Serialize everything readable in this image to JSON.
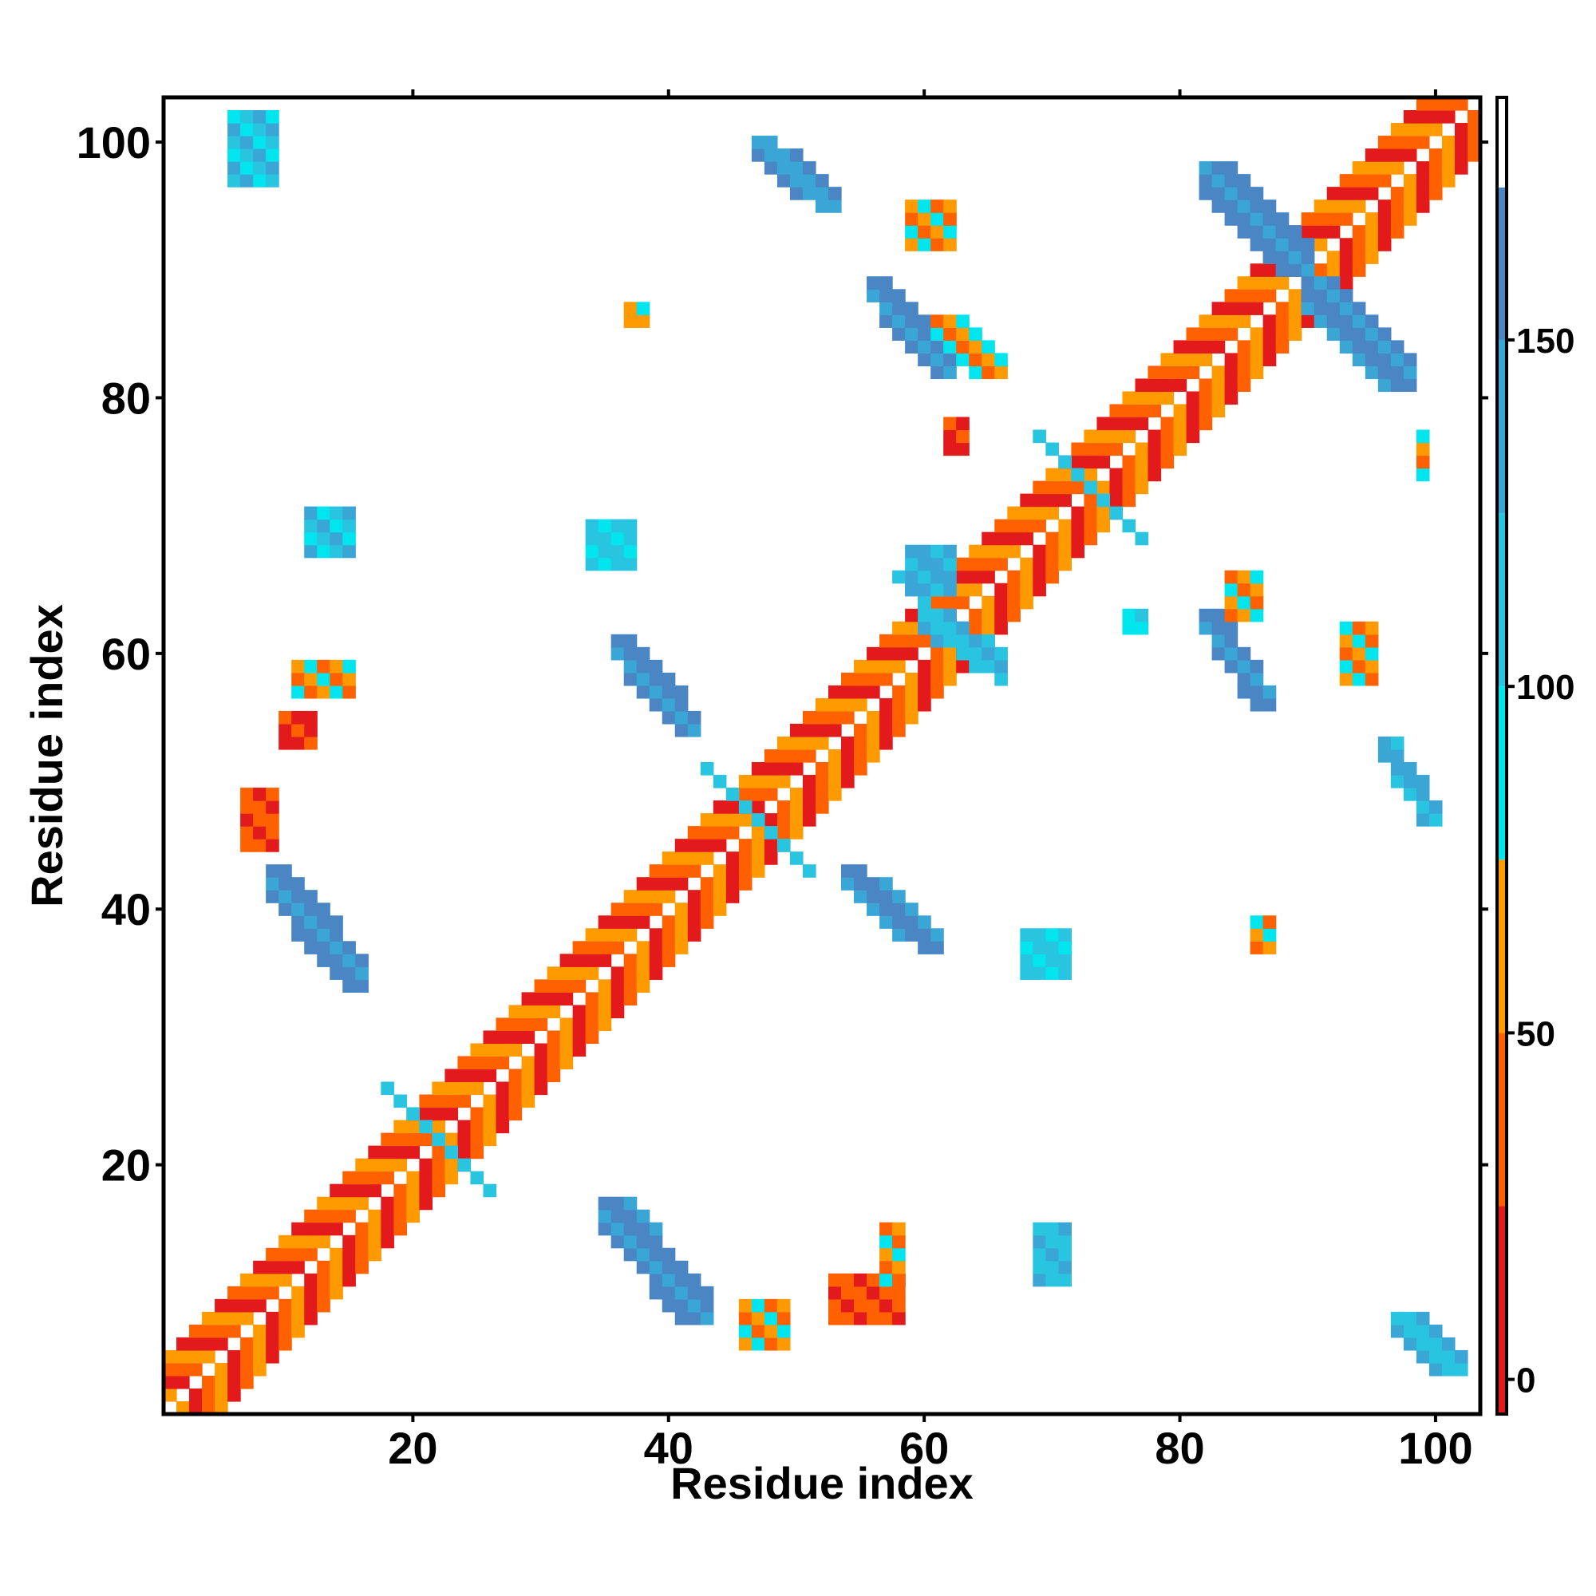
{
  "chart_data": {
    "type": "heatmap",
    "title": "",
    "xlabel": "Residue index",
    "ylabel": "Residue index",
    "xlim": [
      1,
      103
    ],
    "ylim": [
      1,
      103
    ],
    "x_ticks": [
      {
        "value": 20,
        "label": "20"
      },
      {
        "value": 40,
        "label": "40"
      },
      {
        "value": 60,
        "label": "60"
      },
      {
        "value": 80,
        "label": "80"
      },
      {
        "value": 100,
        "label": "100"
      }
    ],
    "y_ticks": [
      {
        "value": 20,
        "label": "20"
      },
      {
        "value": 40,
        "label": "40"
      },
      {
        "value": 60,
        "label": "60"
      },
      {
        "value": 80,
        "label": "80"
      },
      {
        "value": 100,
        "label": "100"
      }
    ],
    "colorbar": {
      "range": [
        -5,
        185
      ],
      "ticks": [
        {
          "value": 0,
          "label": "0"
        },
        {
          "value": 50,
          "label": "50"
        },
        {
          "value": 100,
          "label": "100"
        },
        {
          "value": 150,
          "label": "150"
        }
      ],
      "bands": [
        {
          "from": -5,
          "to": 25,
          "color": "#e31a1c"
        },
        {
          "from": 25,
          "to": 50,
          "color": "#ff6000"
        },
        {
          "from": 50,
          "to": 75,
          "color": "#ff9a00"
        },
        {
          "from": 75,
          "to": 100,
          "color": "#00e5ee"
        },
        {
          "from": 100,
          "to": 125,
          "color": "#29c4e0"
        },
        {
          "from": 125,
          "to": 150,
          "color": "#3aa6d6"
        },
        {
          "from": 150,
          "to": 172,
          "color": "#4a86c4"
        },
        {
          "from": 172,
          "to": 185,
          "color": "#ffffff"
        }
      ]
    },
    "pixel_map_description": "Contact/angle map; each cell colored by band value",
    "diagonal": {
      "start": 1,
      "end": 103
    },
    "off_diagonal_blocks": [
      {
        "x": [
          6,
          9
        ],
        "y": [
          97,
          102
        ],
        "value": 110
      },
      {
        "x": [
          47,
          53
        ],
        "y": [
          95,
          100
        ],
        "value": 140
      },
      {
        "x": [
          82,
          90
        ],
        "y": [
          90,
          98
        ],
        "value": 150
      },
      {
        "x": [
          90,
          98
        ],
        "y": [
          81,
          89
        ],
        "value": 150
      },
      {
        "x": [
          56,
          62
        ],
        "y": [
          82,
          89
        ],
        "value": 150
      },
      {
        "x": [
          61,
          66
        ],
        "y": [
          82,
          86
        ],
        "value": 60
      },
      {
        "x": [
          59,
          62
        ],
        "y": [
          92,
          95
        ],
        "value": 60
      },
      {
        "x": [
          37,
          38
        ],
        "y": [
          86,
          87
        ],
        "value": 65
      },
      {
        "x": [
          12,
          15
        ],
        "y": [
          68,
          71
        ],
        "value": 110
      },
      {
        "x": [
          34,
          37
        ],
        "y": [
          67,
          70
        ],
        "value": 100
      },
      {
        "x": [
          36,
          42
        ],
        "y": [
          54,
          61
        ],
        "value": 150
      },
      {
        "x": [
          9,
          16
        ],
        "y": [
          34,
          43
        ],
        "value": 150
      },
      {
        "x": [
          7,
          9
        ],
        "y": [
          45,
          49
        ],
        "value": 30
      },
      {
        "x": [
          11,
          15
        ],
        "y": [
          57,
          59
        ],
        "value": 60
      },
      {
        "x": [
          10,
          12
        ],
        "y": [
          53,
          55
        ],
        "value": 10
      },
      {
        "x": [
          54,
          61
        ],
        "y": [
          37,
          43
        ],
        "value": 150
      },
      {
        "x": [
          82,
          87
        ],
        "y": [
          56,
          63
        ],
        "value": 150
      },
      {
        "x": [
          84,
          86
        ],
        "y": [
          63,
          66
        ],
        "value": 60
      },
      {
        "x": [
          60,
          66
        ],
        "y": [
          59,
          63
        ],
        "value": 120
      },
      {
        "x": [
          59,
          62
        ],
        "y": [
          65,
          68
        ],
        "value": 130
      },
      {
        "x": [
          35,
          43
        ],
        "y": [
          8,
          17
        ],
        "value": 150
      },
      {
        "x": [
          46,
          49
        ],
        "y": [
          6,
          9
        ],
        "value": 60
      },
      {
        "x": [
          53,
          58
        ],
        "y": [
          8,
          11
        ],
        "value": 30
      },
      {
        "x": [
          57,
          58
        ],
        "y": [
          11,
          15
        ],
        "value": 60
      },
      {
        "x": [
          69,
          71
        ],
        "y": [
          11,
          15
        ],
        "value": 120
      },
      {
        "x": [
          97,
          102
        ],
        "y": [
          4,
          8
        ],
        "value": 120
      },
      {
        "x": [
          96,
          100
        ],
        "y": [
          47,
          53
        ],
        "value": 130
      },
      {
        "x": [
          68,
          71
        ],
        "y": [
          35,
          38
        ],
        "value": 100
      },
      {
        "x": [
          86,
          87
        ],
        "y": [
          37,
          39
        ],
        "value": 60
      },
      {
        "x": [
          93,
          95
        ],
        "y": [
          58,
          62
        ],
        "value": 60
      },
      {
        "x": [
          76,
          77
        ],
        "y": [
          62,
          63
        ],
        "value": 90
      },
      {
        "x": [
          62,
          63
        ],
        "y": [
          76,
          78
        ],
        "value": 10
      },
      {
        "x": [
          99,
          99
        ],
        "y": [
          74,
          77
        ],
        "value": 60
      }
    ]
  }
}
